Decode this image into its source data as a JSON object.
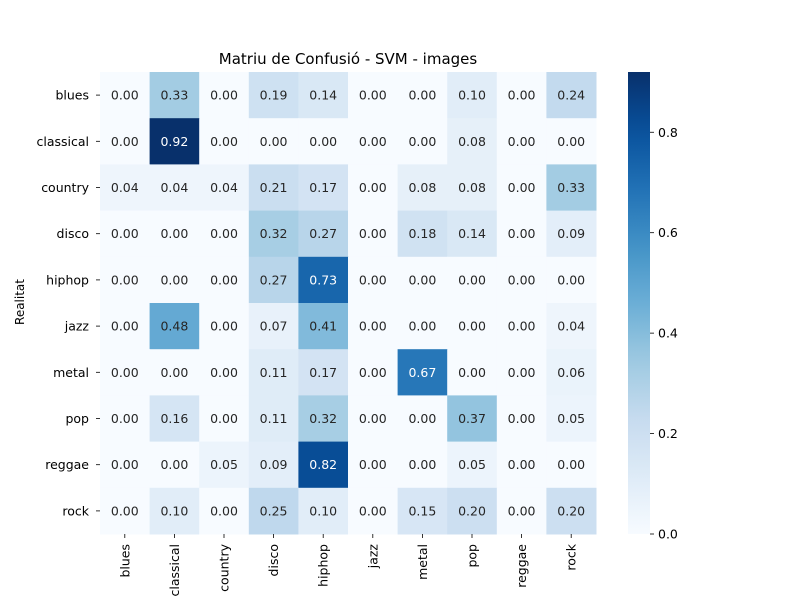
{
  "chart_data": {
    "type": "heatmap",
    "title": "Matriu de Confusió - SVM - images",
    "ylabel": "Realitat",
    "xlabel": "",
    "rows": [
      "blues",
      "classical",
      "country",
      "disco",
      "hiphop",
      "jazz",
      "metal",
      "pop",
      "reggae",
      "rock"
    ],
    "columns": [
      "blues",
      "classical",
      "country",
      "disco",
      "hiphop",
      "jazz",
      "metal",
      "pop",
      "reggae",
      "rock"
    ],
    "values": [
      [
        0.0,
        0.33,
        0.0,
        0.19,
        0.14,
        0.0,
        0.0,
        0.1,
        0.0,
        0.24
      ],
      [
        0.0,
        0.92,
        0.0,
        0.0,
        0.0,
        0.0,
        0.0,
        0.08,
        0.0,
        0.0
      ],
      [
        0.04,
        0.04,
        0.04,
        0.21,
        0.17,
        0.0,
        0.08,
        0.08,
        0.0,
        0.33
      ],
      [
        0.0,
        0.0,
        0.0,
        0.32,
        0.27,
        0.0,
        0.18,
        0.14,
        0.0,
        0.09
      ],
      [
        0.0,
        0.0,
        0.0,
        0.27,
        0.73,
        0.0,
        0.0,
        0.0,
        0.0,
        0.0
      ],
      [
        0.0,
        0.48,
        0.0,
        0.07,
        0.41,
        0.0,
        0.0,
        0.0,
        0.0,
        0.04
      ],
      [
        0.0,
        0.0,
        0.0,
        0.11,
        0.17,
        0.0,
        0.67,
        0.0,
        0.0,
        0.06
      ],
      [
        0.0,
        0.16,
        0.0,
        0.11,
        0.32,
        0.0,
        0.0,
        0.37,
        0.0,
        0.05
      ],
      [
        0.0,
        0.0,
        0.05,
        0.09,
        0.82,
        0.0,
        0.0,
        0.05,
        0.0,
        0.0
      ],
      [
        0.0,
        0.1,
        0.0,
        0.25,
        0.1,
        0.0,
        0.15,
        0.2,
        0.0,
        0.2
      ]
    ],
    "value_format_decimals": 2,
    "colormap": "Blues",
    "vmin": 0.0,
    "vmax": 0.92,
    "colorbar_ticks": [
      0.0,
      0.2,
      0.4,
      0.6,
      0.8
    ],
    "colorbar_tick_labels": [
      "0.0",
      "0.2",
      "0.4",
      "0.6",
      "0.8"
    ]
  }
}
